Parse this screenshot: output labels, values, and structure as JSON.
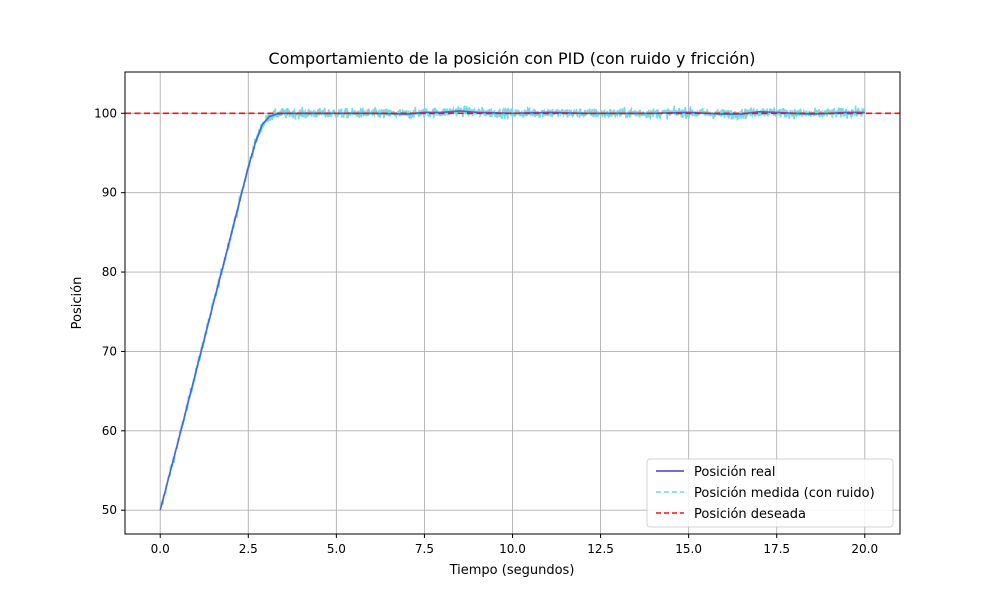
{
  "chart_data": {
    "type": "line",
    "title": "Comportamiento de la posición con PID (con ruido y fricción)",
    "xlabel": "Tiempo (segundos)",
    "ylabel": "Posición",
    "xlim": [
      -1.0,
      21.0
    ],
    "ylim": [
      47.0,
      105.2
    ],
    "xticks": [
      0.0,
      2.5,
      5.0,
      7.5,
      10.0,
      12.5,
      15.0,
      17.5,
      20.0
    ],
    "xtick_labels": [
      "0.0",
      "2.5",
      "5.0",
      "7.5",
      "10.0",
      "12.5",
      "15.0",
      "17.5",
      "20.0"
    ],
    "yticks": [
      50,
      60,
      70,
      80,
      90,
      100
    ],
    "ytick_labels": [
      "50",
      "60",
      "70",
      "80",
      "90",
      "100"
    ],
    "grid": true,
    "legend_position": "lower-right",
    "series": [
      {
        "name": "Posición real",
        "color": "#3b3bdc",
        "style": "solid",
        "x": [
          0.0,
          0.5,
          1.0,
          1.5,
          2.0,
          2.5,
          2.7,
          2.9,
          3.1,
          3.3,
          3.5,
          4.0,
          5.0,
          6.0,
          7.0,
          7.5,
          8.0,
          8.5,
          9.0,
          10.0,
          11.0,
          12.0,
          13.0,
          14.0,
          15.0,
          16.0,
          16.5,
          17.0,
          17.5,
          18.0,
          18.5,
          19.0,
          19.5,
          20.0
        ],
        "y": [
          50.0,
          58.5,
          67.2,
          75.9,
          84.5,
          93.2,
          96.3,
          98.6,
          99.6,
          99.9,
          100.0,
          100.0,
          100.0,
          100.0,
          99.9,
          100.1,
          100.1,
          100.3,
          100.1,
          100.0,
          100.1,
          100.0,
          100.0,
          100.0,
          100.1,
          99.9,
          99.9,
          100.2,
          100.1,
          100.0,
          99.9,
          100.0,
          100.1,
          100.1
        ]
      },
      {
        "name": "Posición medida (con ruido)",
        "color": "#76dcdc",
        "style": "dashed",
        "noise_amplitude": 0.9,
        "base": "Posición real"
      },
      {
        "name": "Posición deseada",
        "color": "#e31a1c",
        "style": "dashed",
        "x": [
          -1.0,
          21.0
        ],
        "y": [
          100.0,
          100.0
        ]
      }
    ]
  }
}
